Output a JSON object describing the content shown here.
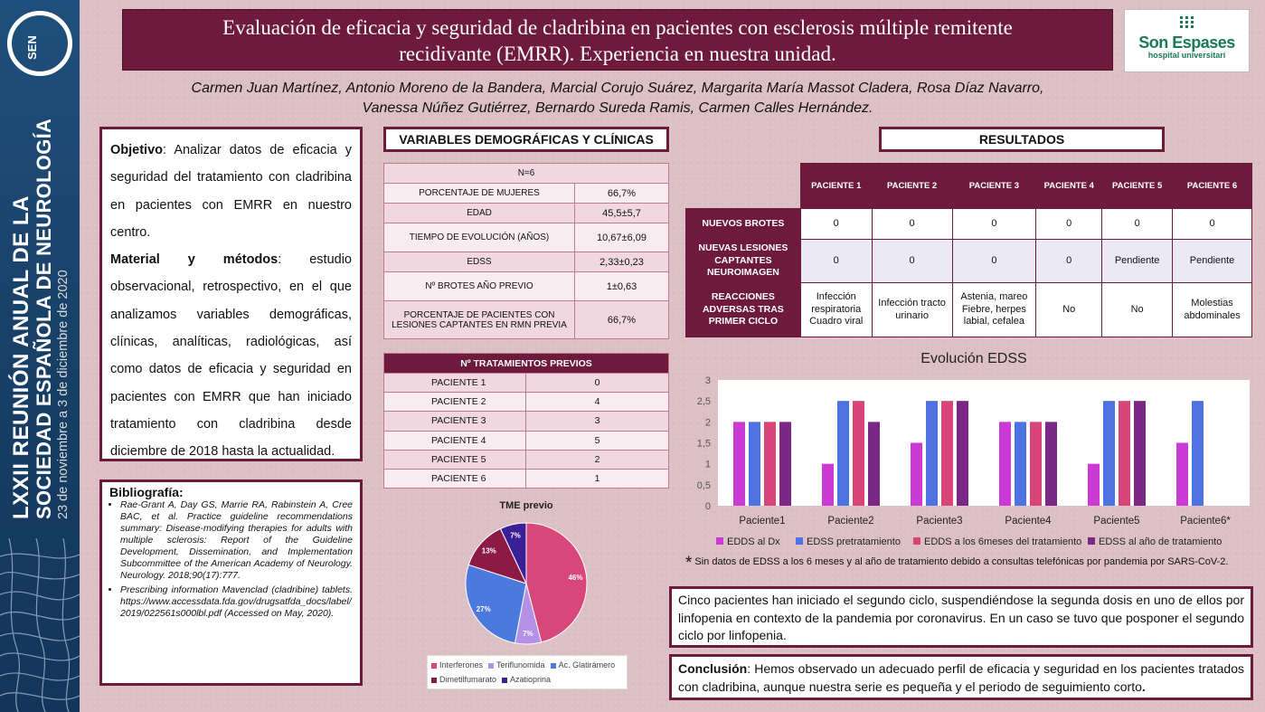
{
  "sidebar": {
    "logo_text": "SEN",
    "meeting_line1": "LXXII REUNIÓN ANUAL DE LA",
    "meeting_line2": "SOCIEDAD ESPAÑOLA DE NEUROLOGÍA",
    "dates": "23 de noviembre a 3 de diciembre de 2020"
  },
  "header": {
    "title_line1": "Evaluación de eficacia y seguridad de cladribina en pacientes con esclerosis múltiple remitente",
    "title_line2": "recidivante (EMRR). Experiencia en nuestra unidad.",
    "hospital_name_1": "Son",
    "hospital_name_2": "Espases",
    "hospital_sub": "hospital universitari",
    "authors_line1": "Carmen Juan Martínez, Antonio Moreno de la Bandera, Marcial Corujo Suárez, Margarita María Massot Cladera, Rosa Díaz Navarro,",
    "authors_line2": "Vanessa Núñez Gutiérrez, Bernardo Sureda Ramis, Carmen Calles Hernández."
  },
  "objective": {
    "label": "Objetivo",
    "text": ": Analizar datos de eficacia y seguridad del tratamiento con cladribina en pacientes con EMRR en nuestro centro.",
    "methods_label": "Material y métodos",
    "methods_text": ": estudio observacional, retrospectivo, en el que analizamos variables demográficas, clínicas, analíticas, radiológicas, así como datos de eficacia y seguridad en pacientes con EMRR que han iniciado tratamiento con cladribina desde diciembre de 2018 hasta la actualidad."
  },
  "bibliography": {
    "title": "Bibliografía:",
    "refs": [
      "Rae-Grant A, Day GS, Marrie RA, Rabinstein A, Cree BAC, et al. Practice guideline recommendations summary: Disease-modifying therapies for adults with multiple sclerosis: Report of the Guideline Development, Dissemination, and Implementation Subcommittee of the American Academy of Neurology. Neurology. 2018;90(17):777.",
      "Prescribing information Mavenclad (cladribine) tablets. https://www.accessdata.fda.gov/drugsatfda_docs/label/2019/022561s000lbl.pdf (Accessed on May, 2020)."
    ]
  },
  "variables": {
    "heading": "VARIABLES DEMOGRÁFICAS Y CLÍNICAS",
    "n_label": "N=6",
    "rows": [
      {
        "label": "PORCENTAJE DE MUJERES",
        "value": "66,7%"
      },
      {
        "label": "EDAD",
        "value": "45,5±5,7"
      },
      {
        "label": "TIEMPO DE EVOLUCIÓN (AÑOS)",
        "value": "10,67±6,09"
      },
      {
        "label": "EDSS",
        "value": "2,33±0,23"
      },
      {
        "label": "Nº BROTES AÑO PREVIO",
        "value": "1±0,63"
      },
      {
        "label": "PORCENTAJE DE PACIENTES CON LESIONES CAPTANTES EN RMN PREVIA",
        "value": "66,7%"
      }
    ]
  },
  "previous_treatments": {
    "heading": "Nº  TRATAMIENTOS PREVIOS",
    "rows": [
      {
        "label": "PACIENTE 1",
        "value": "0"
      },
      {
        "label": "PACIENTE 2",
        "value": "4"
      },
      {
        "label": "PACIENTE 3",
        "value": "3"
      },
      {
        "label": "PACIENTE 4",
        "value": "5"
      },
      {
        "label": "PACIENTE 5",
        "value": "2"
      },
      {
        "label": "PACIENTE 6",
        "value": "1"
      }
    ]
  },
  "results": {
    "heading": "RESULTADOS",
    "columns": [
      "PACIENTE 1",
      "PACIENTE 2",
      "PACIENTE 3",
      "PACIENTE 4",
      "PACIENTE 5",
      "PACIENTE 6"
    ],
    "rows": [
      {
        "label": "NUEVOS BROTES",
        "values": [
          "0",
          "0",
          "0",
          "0",
          "0",
          "0"
        ]
      },
      {
        "label": "NUEVAS LESIONES CAPTANTES NEUROIMAGEN",
        "values": [
          "0",
          "0",
          "0",
          "0",
          "Pendiente",
          "Pendiente"
        ]
      },
      {
        "label": "REACCIONES ADVERSAS TRAS PRIMER CICLO",
        "values": [
          "Infección respiratoria Cuadro viral",
          "Infección tracto urinario",
          "Astenia, mareo Fiebre, herpes labial, cefalea",
          "No",
          "No",
          "Molestias abdominales"
        ]
      }
    ],
    "footnote_star": "*",
    "footnote": "Sin datos de EDSS a los 6 meses y al año de tratamiento debido a consultas telefónicas por pandemia por SARS-CoV-2."
  },
  "summary": "Cinco pacientes han iniciado el segundo ciclo, suspendiéndose la segunda dosis en uno de ellos por linfopenia en contexto de la pandemia por coronavirus. En un caso se tuvo que posponer el segundo ciclo por linfopenia.",
  "conclusion": {
    "label": "Conclusión",
    "text": ": Hemos observado un adecuado perfil de eficacia y seguridad en los pacientes tratados con cladribina, aunque nuestra serie es pequeña y el periodo de seguimiento corto",
    "end": "."
  },
  "chart_data": [
    {
      "type": "pie",
      "title": "TME previo",
      "categories": [
        "Interferones",
        "Teriflunomida",
        "Ac. Glatirámero",
        "Dimetilfumarato",
        "Azatioprina"
      ],
      "values": [
        46,
        7,
        27,
        13,
        7
      ],
      "value_labels": [
        "46%",
        "7%",
        "27%",
        "13%",
        "7%"
      ],
      "colors": [
        "#d9467a",
        "#b491e6",
        "#4b79dd",
        "#8c1a44",
        "#3b1f97"
      ],
      "legend": "bottom"
    },
    {
      "type": "bar",
      "title": "Evolución EDSS",
      "categories": [
        "Paciente1",
        "Paciente2",
        "Paciente3",
        "Paciente4",
        "Paciente5",
        "Paciente6*"
      ],
      "series": [
        {
          "name": "EDDS al Dx",
          "values": [
            2,
            1,
            1.5,
            2,
            1,
            1.5
          ],
          "color": "#cc3ad6"
        },
        {
          "name": "EDSS pretratamiento",
          "values": [
            2,
            2.5,
            2.5,
            2,
            2.5,
            2.5
          ],
          "color": "#4f72e3"
        },
        {
          "name": "EDDS a los 6meses del tratamiento",
          "values": [
            2,
            2.5,
            2.5,
            2,
            2.5,
            null
          ],
          "color": "#d94578"
        },
        {
          "name": "EDSS al año de tratamiento",
          "values": [
            2,
            2,
            2.5,
            2,
            2.5,
            null
          ],
          "color": "#7a2785"
        }
      ],
      "y_ticks": [
        "0",
        "0,5",
        "1",
        "1,5",
        "2",
        "2,5",
        "3"
      ],
      "ylim": [
        0,
        3
      ],
      "grid": false,
      "legend": "bottom"
    }
  ]
}
